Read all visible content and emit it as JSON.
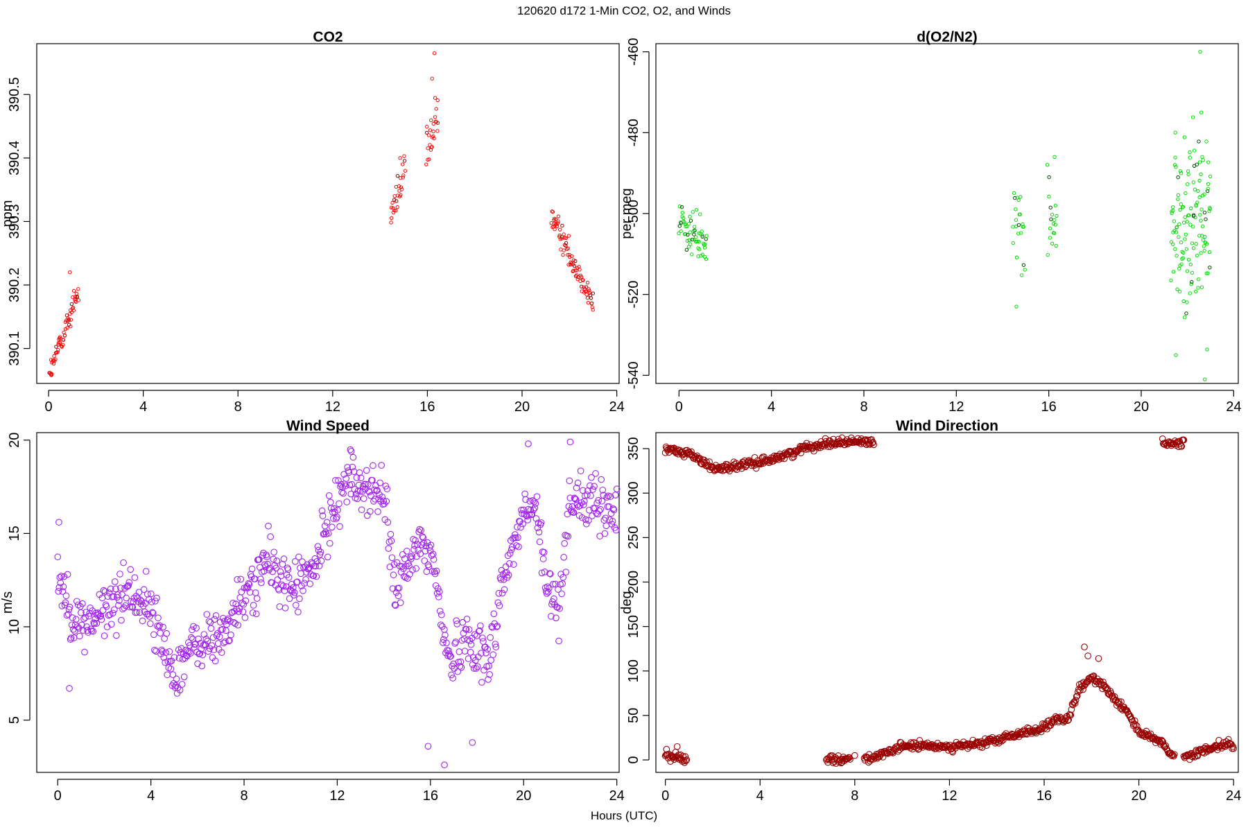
{
  "figure": {
    "title": "120620   d172   1-Min CO2, O2, and Winds",
    "xlabel": "Hours (UTC)"
  },
  "chart_data": [
    {
      "type": "scatter",
      "title": "CO2",
      "xlabel": "",
      "ylabel": "ppm",
      "xlim": [
        -0.5,
        24.1
      ],
      "ylim": [
        390.045,
        390.58
      ],
      "xticks": [
        0,
        4,
        8,
        12,
        16,
        20,
        24
      ],
      "yticks": [
        390.1,
        390.2,
        390.3,
        390.4,
        390.5
      ],
      "color": "#ff0000",
      "highlight_color": "#8b0000",
      "marker": "small-open-circle",
      "segments": [
        {
          "x_start": 0.05,
          "x_end": 1.25,
          "y_start": 390.06,
          "y_end": 390.19,
          "n": 65,
          "noise": 0.018
        },
        {
          "x_start": 14.45,
          "x_end": 15.05,
          "y_start": 390.31,
          "y_end": 390.38,
          "n": 28,
          "noise": 0.025
        },
        {
          "x_start": 15.95,
          "x_end": 16.45,
          "y_start": 390.4,
          "y_end": 390.47,
          "n": 26,
          "noise": 0.04
        },
        {
          "x_start": 21.25,
          "x_end": 23.0,
          "y_start": 390.31,
          "y_end": 390.17,
          "n": 85,
          "noise": 0.02
        }
      ],
      "points": [
        [
          0.1,
          390.06
        ],
        [
          16.3,
          390.565
        ],
        [
          16.2,
          390.525
        ],
        [
          14.85,
          390.4
        ],
        [
          21.3,
          390.315
        ],
        [
          0.9,
          390.22
        ]
      ]
    },
    {
      "type": "scatter",
      "title": "d(O2/N2)",
      "xlabel": "",
      "ylabel": "per meg",
      "xlim": [
        -1,
        24.2
      ],
      "ylim": [
        -542,
        -458
      ],
      "xticks": [
        0,
        4,
        8,
        12,
        16,
        20,
        24
      ],
      "yticks": [
        -540,
        -520,
        -500,
        -480,
        -460
      ],
      "color": "#00dd00",
      "highlight_color": "#004400",
      "marker": "small-open-circle",
      "segments": [
        {
          "x_start": 0.0,
          "x_end": 1.2,
          "y_start": -502,
          "y_end": -508,
          "n": 60,
          "noise": 6
        },
        {
          "x_start": 14.45,
          "x_end": 14.95,
          "y_start": -503,
          "y_end": -505,
          "n": 22,
          "noise": 12
        },
        {
          "x_start": 15.95,
          "x_end": 16.35,
          "y_start": -497,
          "y_end": -500,
          "n": 18,
          "noise": 14
        },
        {
          "x_start": 21.3,
          "x_end": 23.0,
          "y_start": -505,
          "y_end": -500,
          "n": 130,
          "noise": 22
        }
      ],
      "points": [
        [
          22.55,
          -460
        ],
        [
          22.75,
          -541
        ],
        [
          14.6,
          -523
        ],
        [
          16.25,
          -486
        ],
        [
          22.6,
          -475
        ],
        [
          21.5,
          -535
        ]
      ]
    },
    {
      "type": "scatter",
      "title": "Wind Speed",
      "xlabel": "",
      "ylabel": "m/s",
      "xlim": [
        -0.9,
        24.1
      ],
      "ylim": [
        2.2,
        20.4
      ],
      "xticks": [
        0,
        4,
        8,
        12,
        16,
        20,
        24
      ],
      "yticks": [
        5,
        10,
        15,
        20
      ],
      "color": "#a020f0",
      "marker": "open-circle",
      "series": [
        {
          "name": "",
          "x": [
            0,
            0.5,
            1,
            2,
            3,
            4,
            4.5,
            5,
            5.5,
            6,
            7,
            8,
            9,
            10,
            11,
            12,
            12.5,
            13,
            14,
            14.5,
            15,
            15.5,
            16,
            16.3,
            16.8,
            17.5,
            18,
            18.5,
            19,
            20,
            20.5,
            21,
            21.5,
            22,
            23,
            24
          ],
          "y": [
            13,
            11,
            10,
            10.8,
            12,
            11,
            9,
            7.5,
            8.5,
            9,
            9.5,
            11.5,
            13.5,
            12,
            13,
            17,
            18,
            17.5,
            17,
            12,
            13,
            14.5,
            14,
            12,
            8,
            9.5,
            9,
            8,
            12,
            16,
            16.5,
            12,
            11,
            17,
            16.5,
            16
          ]
        }
      ],
      "noise": 1.3,
      "extremes": [
        [
          16.6,
          2.6
        ],
        [
          15.9,
          3.6
        ],
        [
          17.8,
          3.8
        ],
        [
          12.6,
          19.4
        ],
        [
          22.0,
          19.9
        ],
        [
          20.2,
          19.8
        ],
        [
          0.5,
          6.7
        ],
        [
          0.05,
          15.6
        ]
      ]
    },
    {
      "type": "scatter",
      "title": "Wind Direction",
      "xlabel": "",
      "ylabel": "deg",
      "xlim": [
        -0.4,
        24.2
      ],
      "ylim": [
        -14,
        368
      ],
      "xticks": [
        0,
        4,
        8,
        12,
        16,
        20,
        24
      ],
      "yticks": [
        0,
        50,
        100,
        150,
        200,
        250,
        300,
        350
      ],
      "color": "#990000",
      "marker": "open-circle",
      "series": [
        {
          "name": "",
          "x": [
            0,
            0.3,
            1,
            2,
            3,
            4,
            5,
            6,
            7,
            8,
            8.8
          ],
          "y": [
            350,
            348,
            345,
            328,
            330,
            335,
            342,
            352,
            357,
            358,
            358
          ]
        },
        {
          "name": "",
          "x": [
            0,
            0.9
          ],
          "y": [
            4,
            2
          ]
        },
        {
          "name": "",
          "x": [
            6.8,
            7.8
          ],
          "y": [
            1,
            1
          ]
        },
        {
          "name": "",
          "x": [
            8.4,
            9.5,
            10,
            12,
            13,
            14,
            15,
            16,
            16.5,
            17,
            17.5,
            18,
            18.5,
            19,
            19.5,
            20,
            21,
            21.5
          ],
          "y": [
            1,
            8,
            16,
            15,
            17,
            22,
            30,
            36,
            45,
            45,
            80,
            92,
            85,
            68,
            55,
            32,
            18,
            3
          ]
        },
        {
          "name": "",
          "x": [
            21,
            21.9
          ],
          "y": [
            355,
            356
          ]
        },
        {
          "name": "",
          "x": [
            21.9,
            22.5,
            23,
            23.8,
            24
          ],
          "y": [
            3,
            8,
            14,
            20,
            12
          ]
        }
      ],
      "noise": 4,
      "extremes": [
        [
          17.7,
          127
        ],
        [
          17.85,
          117
        ],
        [
          18.3,
          114
        ],
        [
          0.5,
          15
        ],
        [
          0.05,
          12
        ],
        [
          8.0,
          5
        ]
      ]
    }
  ]
}
